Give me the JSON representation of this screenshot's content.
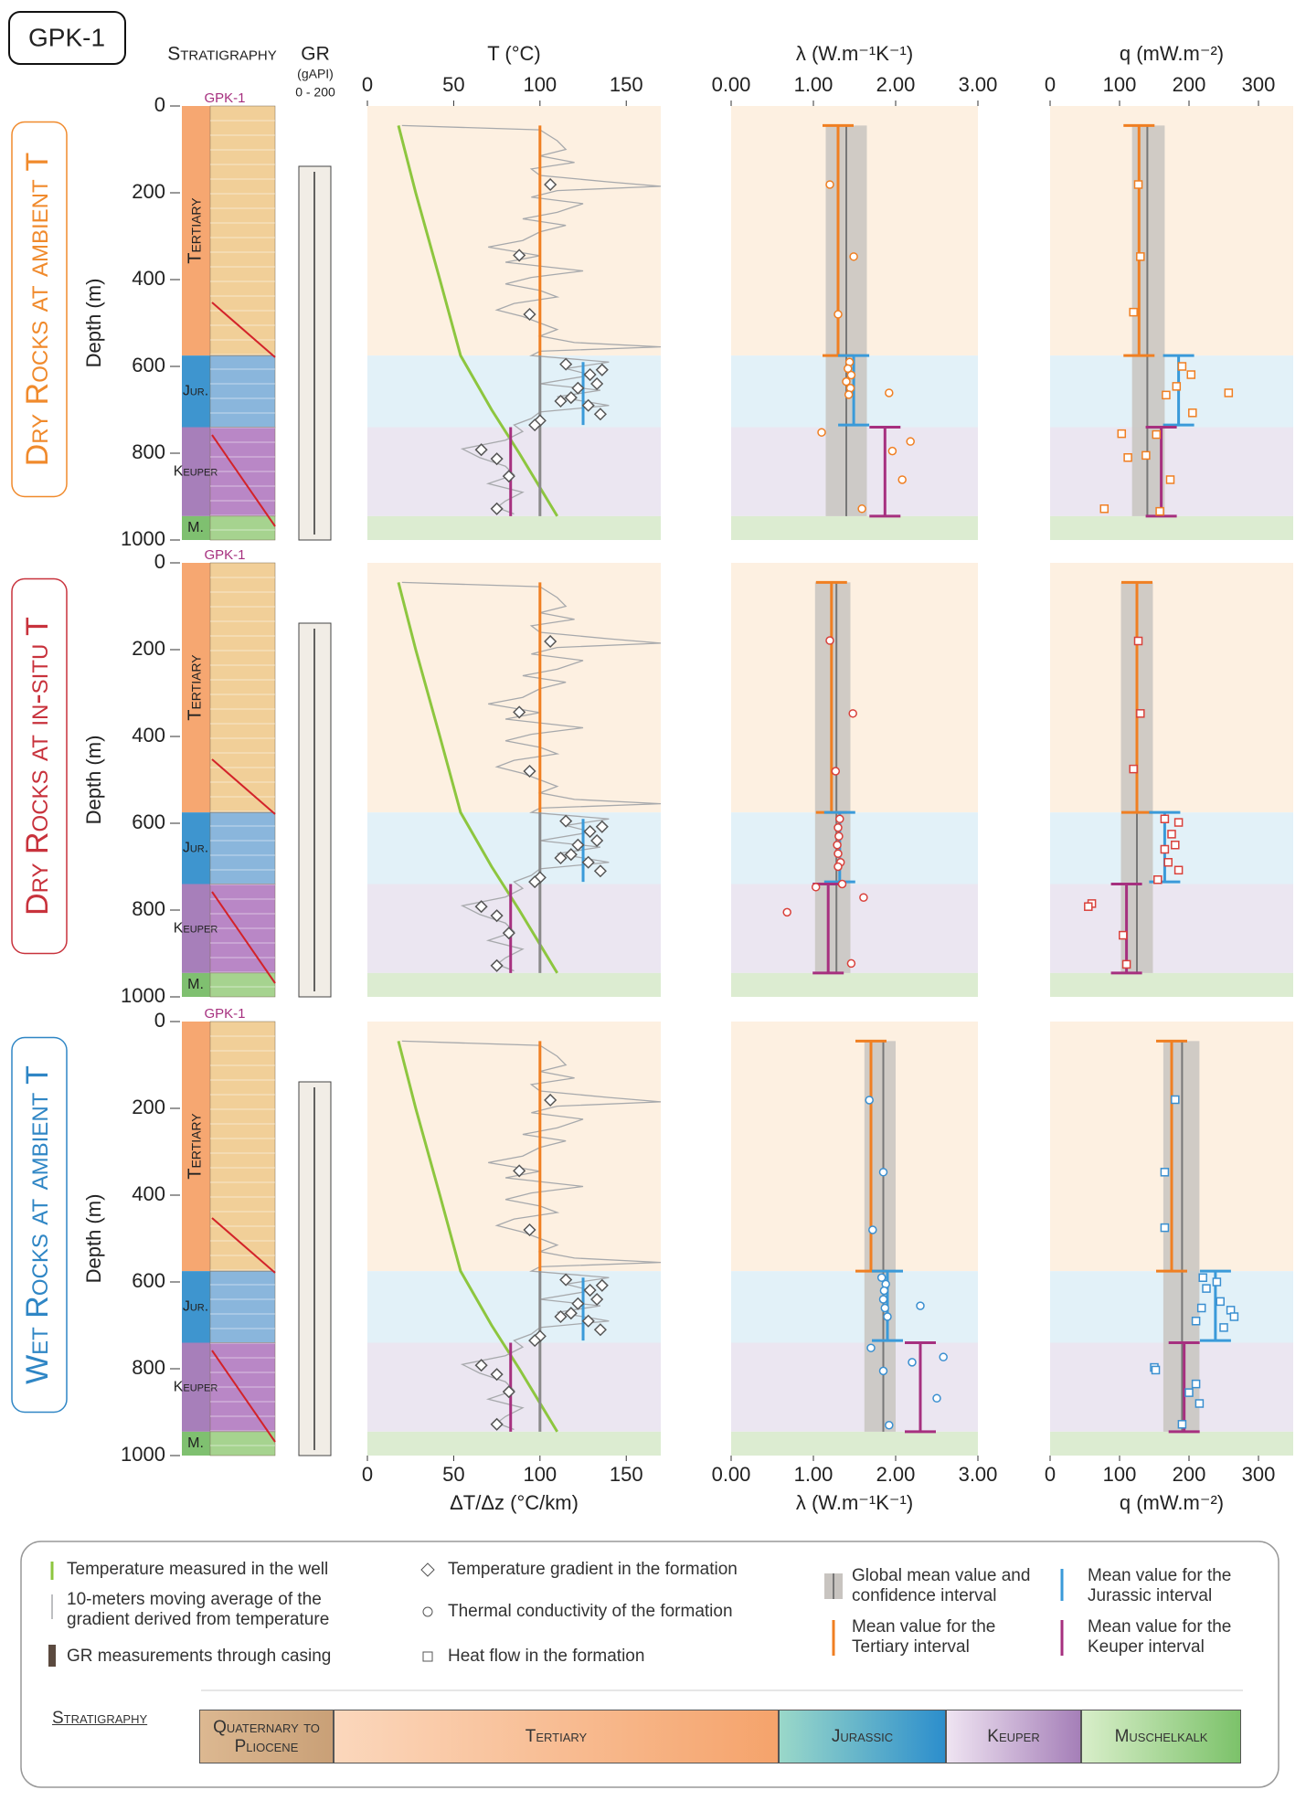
{
  "header": {
    "label": "GPK-1",
    "stratigraphy": "Stratigraphy",
    "gr": "GR",
    "gr_unit": "(gAPI)",
    "gr_range": "0 - 200"
  },
  "depth_label": "Depth (m)",
  "rows": [
    {
      "title": "Dry Rocks at ambient T",
      "color": "#f08a2c"
    },
    {
      "title": "Dry Rocks at in-situ T",
      "color": "#c8323c"
    },
    {
      "title": "Wet Rocks at ambient T",
      "color": "#2f86c5"
    }
  ],
  "formations": [
    {
      "label": "Tertiary",
      "top": 0,
      "bottom": 575,
      "color": "#fdf0e1",
      "column_color": "#f6a771",
      "litho_color": "#f1cf98"
    },
    {
      "label": "Jur.",
      "top": 575,
      "bottom": 740,
      "color": "#e2f1f8",
      "column_color": "#3e95cf",
      "litho_color": "#8ab6dc"
    },
    {
      "label": "Keuper",
      "top": 740,
      "bottom": 945,
      "color": "#ebe6f1",
      "column_color": "#a77fba",
      "litho_color": "#b987c6"
    },
    {
      "label": "M.",
      "top": 945,
      "bottom": 1000,
      "color": "#dcecd1",
      "column_color": "#7fc070",
      "litho_color": "#a6d38f"
    }
  ],
  "chart_data": [
    {
      "type": "profile",
      "xlabel_top": "T (°C)",
      "xlabel": "ΔT/Δz (°C/km)",
      "xlim": [
        0,
        170
      ],
      "xticks": [
        0,
        50,
        100,
        150
      ],
      "ylim": [
        0,
        1000
      ],
      "yticks": [
        0,
        200,
        400,
        600,
        800,
        1000
      ],
      "series": [
        {
          "color": "#8dc63f",
          "values": [
            18,
            28,
            42,
            54,
            72,
            88,
            110
          ],
          "depth": [
            45,
            200,
            400,
            575,
            700,
            800,
            945
          ]
        },
        {
          "color": "#a7a9ac",
          "values": [
            20,
            100,
            110,
            115,
            100,
            120,
            95,
            100,
            140,
            170,
            110,
            95,
            125,
            110,
            90,
            115,
            100,
            90,
            70,
            100,
            80,
            125,
            95,
            80,
            100,
            110,
            85,
            75,
            90,
            100,
            110,
            100,
            120,
            170,
            100,
            95,
            140,
            115,
            130,
            100,
            135,
            110,
            140,
            100,
            95,
            85,
            90,
            80,
            55,
            65,
            80,
            85,
            70,
            90,
            80,
            75,
            85
          ],
          "depth": [
            45,
            55,
            80,
            100,
            115,
            130,
            145,
            160,
            175,
            185,
            195,
            210,
            225,
            245,
            260,
            275,
            290,
            310,
            325,
            345,
            360,
            380,
            395,
            410,
            425,
            440,
            455,
            470,
            485,
            500,
            515,
            530,
            545,
            555,
            565,
            575,
            590,
            605,
            620,
            640,
            655,
            670,
            690,
            705,
            720,
            735,
            750,
            770,
            790,
            810,
            830,
            850,
            870,
            890,
            910,
            925,
            940
          ]
        }
      ],
      "points": {
        "marker": "diamond",
        "color": "#555555",
        "values": [
          106,
          88,
          94,
          115,
          129,
          136,
          133,
          122,
          118,
          128,
          135,
          112,
          100,
          97,
          66,
          75,
          82,
          75
        ],
        "depth": [
          181,
          344,
          480,
          595,
          619,
          608,
          640,
          650,
          672,
          690,
          710,
          680,
          725,
          735,
          792,
          813,
          853,
          928
        ]
      },
      "means": [
        {
          "value": 100,
          "top": 45,
          "bottom": 575,
          "color": "#f07f22"
        },
        {
          "value": 100,
          "top": 575,
          "bottom": 945,
          "color": "#8a8a8a"
        },
        {
          "value": 125,
          "top": 590,
          "bottom": 735,
          "color": "#3a9ad9"
        },
        {
          "value": 83,
          "top": 740,
          "bottom": 945,
          "color": "#a6307f"
        }
      ],
      "caps": false
    },
    {
      "type": "profile",
      "xlabel": "λ (W.m⁻¹K⁻¹)",
      "xlim": [
        0,
        3
      ],
      "xticks": [
        {
          "value": 0,
          "label": "0.00"
        },
        {
          "value": 1,
          "label": "1.00"
        },
        {
          "value": 2,
          "label": "2.00"
        },
        {
          "value": 3,
          "label": "3.00"
        }
      ],
      "ylim": [
        0,
        1000
      ],
      "band": {
        "value": 1.4,
        "low": 1.15,
        "high": 1.65,
        "top": 45,
        "bottom": 945,
        "color": "#c8c4c0"
      },
      "means": [
        {
          "value": 1.3,
          "top": 45,
          "bottom": 575,
          "color": "#f07f22"
        },
        {
          "value": 1.49,
          "top": 575,
          "bottom": 735,
          "color": "#3a9ad9"
        },
        {
          "value": 1.87,
          "top": 740,
          "bottom": 945,
          "color": "#a6307f"
        }
      ],
      "caps": true,
      "points": {
        "marker": "circle",
        "color": "#f07f22",
        "values": [
          1.2,
          1.49,
          1.3,
          1.44,
          1.42,
          1.46,
          1.4,
          1.45,
          1.43,
          1.92,
          1.1,
          2.18,
          1.96,
          2.08,
          1.59
        ],
        "depth": [
          181,
          347,
          480,
          590,
          605,
          620,
          635,
          650,
          665,
          661,
          752,
          773,
          795,
          861,
          928
        ]
      }
    },
    {
      "type": "profile",
      "xlabel": "q (mW.m⁻²)",
      "xlim": [
        0,
        350
      ],
      "xticks": [
        0,
        100,
        200,
        300
      ],
      "ylim": [
        0,
        1000
      ],
      "band": {
        "value": 140,
        "low": 118,
        "high": 165,
        "top": 45,
        "bottom": 945,
        "color": "#c8c4c0"
      },
      "means": [
        {
          "value": 128,
          "top": 45,
          "bottom": 575,
          "color": "#f07f22"
        },
        {
          "value": 185,
          "top": 575,
          "bottom": 735,
          "color": "#3a9ad9"
        },
        {
          "value": 160,
          "top": 740,
          "bottom": 945,
          "color": "#a6307f"
        }
      ],
      "caps": true,
      "points": {
        "marker": "square",
        "color": "#f07f22",
        "values": [
          127,
          130,
          120,
          190,
          203,
          182,
          167,
          257,
          205,
          153,
          103,
          138,
          112,
          173,
          78,
          158
        ],
        "depth": [
          181,
          347,
          475,
          600,
          619,
          646,
          666,
          661,
          707,
          757,
          755,
          805,
          810,
          861,
          928,
          934
        ]
      }
    },
    {
      "type": "profile",
      "xlim": [
        0,
        3
      ],
      "ylim": [
        0,
        1000
      ],
      "band": {
        "value": 1.28,
        "low": 1.02,
        "high": 1.45,
        "top": 45,
        "bottom": 945,
        "color": "#c8c4c0"
      },
      "means": [
        {
          "value": 1.22,
          "top": 45,
          "bottom": 575,
          "color": "#f07f22"
        },
        {
          "value": 1.32,
          "top": 575,
          "bottom": 735,
          "color": "#3a9ad9"
        },
        {
          "value": 1.18,
          "top": 740,
          "bottom": 945,
          "color": "#a6307f"
        }
      ],
      "caps": true,
      "points": {
        "marker": "circle",
        "color": "#d9413b",
        "values": [
          1.2,
          1.48,
          1.27,
          1.32,
          1.3,
          1.31,
          1.29,
          1.3,
          1.33,
          1.03,
          1.61,
          0.68,
          1.46,
          1.3,
          1.35
        ],
        "depth": [
          179,
          347,
          480,
          590,
          610,
          630,
          650,
          670,
          690,
          747,
          771,
          805,
          923,
          700,
          740
        ]
      }
    },
    {
      "type": "profile",
      "xlim": [
        0,
        350
      ],
      "ylim": [
        0,
        1000
      ],
      "band": {
        "value": 125,
        "low": 102,
        "high": 148,
        "top": 45,
        "bottom": 945,
        "color": "#c8c4c0"
      },
      "means": [
        {
          "value": 125,
          "top": 45,
          "bottom": 575,
          "color": "#f07f22"
        },
        {
          "value": 165,
          "top": 575,
          "bottom": 735,
          "color": "#3a9ad9"
        },
        {
          "value": 110,
          "top": 740,
          "bottom": 945,
          "color": "#a6307f"
        }
      ],
      "caps": true,
      "points": {
        "marker": "square",
        "color": "#d9413b",
        "values": [
          127,
          130,
          120,
          165,
          185,
          175,
          180,
          165,
          170,
          185,
          155,
          60,
          55,
          105,
          110
        ],
        "depth": [
          180,
          347,
          475,
          590,
          598,
          625,
          650,
          660,
          690,
          708,
          730,
          785,
          792,
          858,
          925
        ]
      }
    },
    {
      "type": "profile",
      "xlabel": "λ (W.m⁻¹K⁻¹)",
      "xlim": [
        0,
        3
      ],
      "xticks": [
        {
          "value": 0,
          "label": "0.00"
        },
        {
          "value": 1,
          "label": "1.00"
        },
        {
          "value": 2,
          "label": "2.00"
        },
        {
          "value": 3,
          "label": "3.00"
        }
      ],
      "ylim": [
        0,
        1000
      ],
      "band": {
        "value": 1.85,
        "low": 1.62,
        "high": 2.0,
        "top": 45,
        "bottom": 945,
        "color": "#c8c4c0"
      },
      "means": [
        {
          "value": 1.7,
          "top": 45,
          "bottom": 575,
          "color": "#f07f22"
        },
        {
          "value": 1.9,
          "top": 575,
          "bottom": 735,
          "color": "#3a9ad9"
        },
        {
          "value": 2.3,
          "top": 740,
          "bottom": 945,
          "color": "#a6307f"
        }
      ],
      "caps": true,
      "points": {
        "marker": "circle",
        "color": "#3a8fd0",
        "values": [
          1.68,
          1.85,
          1.72,
          1.83,
          1.88,
          1.86,
          1.85,
          1.87,
          1.9,
          2.3,
          1.7,
          2.2,
          2.58,
          2.5,
          1.92,
          1.85
        ],
        "depth": [
          181,
          347,
          480,
          590,
          605,
          620,
          640,
          660,
          680,
          655,
          752,
          785,
          773,
          868,
          930,
          805
        ]
      }
    },
    {
      "type": "profile",
      "xlabel": "q (mW.m⁻²)",
      "xlim": [
        0,
        350
      ],
      "xticks": [
        0,
        100,
        200,
        300
      ],
      "ylim": [
        0,
        1000
      ],
      "band": {
        "value": 190,
        "low": 163,
        "high": 215,
        "top": 45,
        "bottom": 945,
        "color": "#c8c4c0"
      },
      "means": [
        {
          "value": 175,
          "top": 45,
          "bottom": 575,
          "color": "#f07f22"
        },
        {
          "value": 238,
          "top": 575,
          "bottom": 735,
          "color": "#3a9ad9"
        },
        {
          "value": 193,
          "top": 740,
          "bottom": 945,
          "color": "#a6307f"
        }
      ],
      "caps": true,
      "points": {
        "marker": "square",
        "color": "#3a8fd0",
        "values": [
          180,
          165,
          165,
          220,
          240,
          225,
          245,
          218,
          260,
          210,
          250,
          265,
          150,
          152,
          210,
          200,
          215,
          190
        ],
        "depth": [
          180,
          347,
          475,
          590,
          600,
          615,
          645,
          660,
          665,
          690,
          705,
          680,
          797,
          803,
          835,
          855,
          880,
          928
        ]
      }
    }
  ],
  "legend": [
    "Temperature measured in the well",
    "10-meters moving average of the gradient derived from temperature",
    "GR measurements through casing",
    "Temperature gradient in the formation",
    "Thermal conductivity of the formation",
    "Heat flow in the formation",
    "Global mean value and confidence interval",
    "Mean value for the Tertiary interval",
    "Mean value for the Jurassic interval",
    "Mean value for the Keuper interval"
  ],
  "stratigraphy": {
    "title": "Stratigraphy",
    "units": [
      {
        "name": "Quaternary to Pliocene",
        "colors": [
          "#dcb891",
          "#c9a077"
        ]
      },
      {
        "name": "Tertiary",
        "colors": [
          "#fbd7bc",
          "#f5a36b"
        ]
      },
      {
        "name": "Jurassic",
        "colors": [
          "#9ad8c9",
          "#2c8ecc"
        ]
      },
      {
        "name": "Keuper",
        "colors": [
          "#efe4f2",
          "#a57fb8"
        ]
      },
      {
        "name": "Muschelkalk",
        "colors": [
          "#d8eec9",
          "#7cc26a"
        ]
      }
    ]
  }
}
